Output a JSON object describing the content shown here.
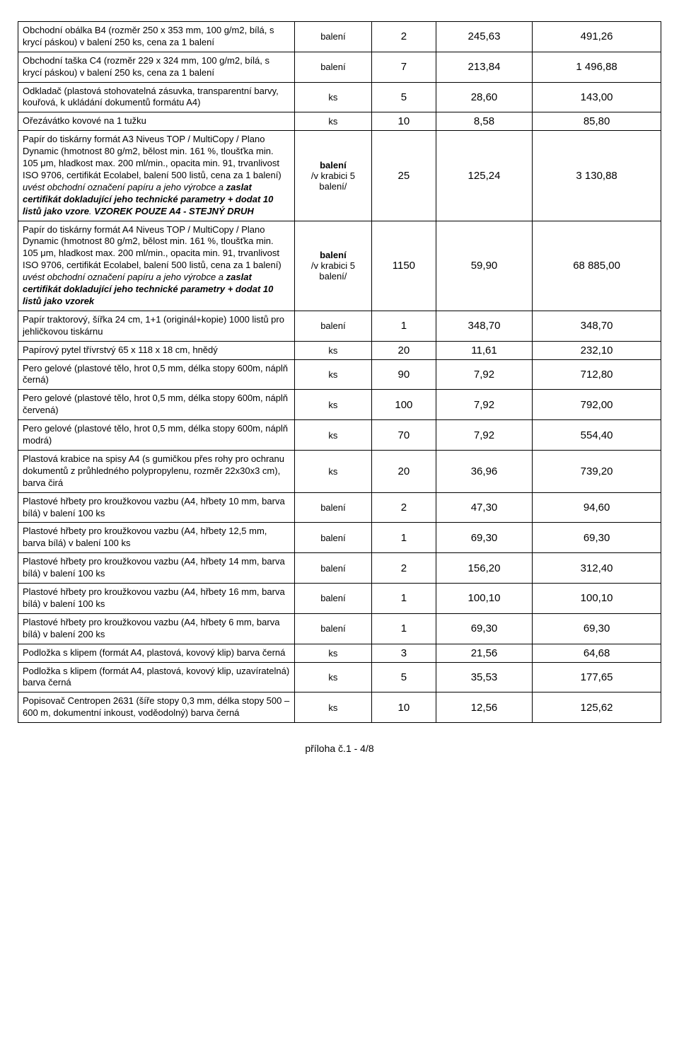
{
  "footer": "příloha č.1 - 4/8",
  "rows": [
    {
      "desc": "Obchodní obálka B4 (rozměr 250 x 353 mm, 100 g/m2, bílá, s krycí páskou) v balení 250 ks, cena za 1 balení",
      "unit": "balení",
      "qty": "2",
      "price": "245,63",
      "total": "491,26"
    },
    {
      "desc": "Obchodní taška C4 (rozměr 229 x 324 mm, 100 g/m2, bílá, s krycí páskou) v balení 250 ks, cena za 1 balení",
      "unit": "balení",
      "qty": "7",
      "price": "213,84",
      "total": "1 496,88"
    },
    {
      "desc": "Odkladač (plastová stohovatelná zásuvka, transparentní barvy, kouřová, k ukládání dokumentů formátu A4)",
      "unit": "ks",
      "qty": "5",
      "price": "28,60",
      "total": "143,00"
    },
    {
      "desc": "Ořezávátko kovové na 1 tužku",
      "unit": "ks",
      "qty": "10",
      "price": "8,58",
      "total": "85,80"
    },
    {
      "desc": "Papír do tiskárny formát A3 Niveus TOP / MultiCopy / Plano Dynamic (hmotnost 80 g/m2, bělost min. 161 %, tloušťka min. 105 μm, hladkost max. 200 ml/min., opacita min. 91, trvanlivost ISO 9706, certifikát Ecolabel, balení 500 listů, cena za 1 balení) <i>uvést obchodní označení papíru a jeho výrobce a <b>zaslat certifikát dokladující jeho technické parametry + dodat 10 listů jako vzore</b>.</i> <b><i>VZOREK POUZE A4 - STEJNÝ DRUH</i></b>",
      "unit": "<b>balení</b><br>/v krabici 5 balení/",
      "qty": "25",
      "price": "125,24",
      "total": "3 130,88"
    },
    {
      "desc": "Papír do tiskárny formát A4 Niveus TOP / MultiCopy / Plano Dynamic (hmotnost 80 g/m2, bělost min. 161 %, tloušťka min. 105 μm, hladkost max. 200 ml/min., opacita min. 91, trvanlivost ISO 9706, certifikát Ecolabel, balení 500 listů, cena za 1 balení) <i>uvést obchodní označení papíru a jeho výrobce a <b>zaslat certifikát dokladující jeho technické parametry + dodat 10 listů jako vzorek</b></i>",
      "unit": "<b>balení</b><br>/v krabici 5 balení/",
      "qty": "1150",
      "price": "59,90",
      "total": "68 885,00"
    },
    {
      "desc": "Papír traktorový, šířka 24 cm, 1+1 (originál+kopie) 1000 listů pro jehličkovou tiskárnu",
      "unit": "balení",
      "qty": "1",
      "price": "348,70",
      "total": "348,70"
    },
    {
      "desc": "Papírový pytel třívrstvý 65 x 118 x 18 cm, hnědý",
      "unit": "ks",
      "qty": "20",
      "price": "11,61",
      "total": "232,10"
    },
    {
      "desc": "Pero gelové (plastové tělo, hrot 0,5 mm, délka stopy 600m, náplň černá)",
      "unit": "ks",
      "qty": "90",
      "price": "7,92",
      "total": "712,80"
    },
    {
      "desc": "Pero gelové (plastové tělo, hrot 0,5 mm, délka stopy 600m, náplň červená)",
      "unit": "ks",
      "qty": "100",
      "price": "7,92",
      "total": "792,00"
    },
    {
      "desc": "Pero gelové (plastové tělo, hrot 0,5 mm, délka stopy 600m, náplň modrá)",
      "unit": "ks",
      "qty": "70",
      "price": "7,92",
      "total": "554,40"
    },
    {
      "desc": "Plastová krabice na spisy A4 (s gumičkou přes rohy pro ochranu dokumentů z průhledného polypropylenu, rozměr 22x30x3 cm), barva čirá",
      "unit": "ks",
      "qty": "20",
      "price": "36,96",
      "total": "739,20"
    },
    {
      "desc": "Plastové hřbety pro kroužkovou vazbu (A4, hřbety 10 mm, barva bílá) v balení 100 ks",
      "unit": "balení",
      "qty": "2",
      "price": "47,30",
      "total": "94,60"
    },
    {
      "desc": "Plastové hřbety pro kroužkovou vazbu (A4, hřbety 12,5 mm, barva bílá) v balení 100 ks",
      "unit": "balení",
      "qty": "1",
      "price": "69,30",
      "total": "69,30"
    },
    {
      "desc": "Plastové hřbety pro kroužkovou vazbu (A4, hřbety 14 mm, barva bílá) v balení 100 ks",
      "unit": "balení",
      "qty": "2",
      "price": "156,20",
      "total": "312,40"
    },
    {
      "desc": "Plastové hřbety pro kroužkovou vazbu (A4, hřbety 16 mm, barva bílá) v balení 100 ks",
      "unit": "balení",
      "qty": "1",
      "price": "100,10",
      "total": "100,10"
    },
    {
      "desc": "Plastové hřbety pro kroužkovou vazbu (A4, hřbety 6 mm, barva bílá) v balení 200 ks",
      "unit": "balení",
      "qty": "1",
      "price": "69,30",
      "total": "69,30"
    },
    {
      "desc": "Podložka s klipem (formát A4, plastová, kovový klip) barva černá",
      "unit": "ks",
      "qty": "3",
      "price": "21,56",
      "total": "64,68"
    },
    {
      "desc": "Podložka s klipem (formát A4, plastová, kovový klip, uzavíratelná) barva černá",
      "unit": "ks",
      "qty": "5",
      "price": "35,53",
      "total": "177,65"
    },
    {
      "desc": "Popisovač Centropen 2631 (šíře stopy 0,3 mm, délka stopy 500 – 600 m, dokumentní inkoust, voděodolný) barva černá",
      "unit": "ks",
      "qty": "10",
      "price": "12,56",
      "total": "125,62"
    }
  ]
}
